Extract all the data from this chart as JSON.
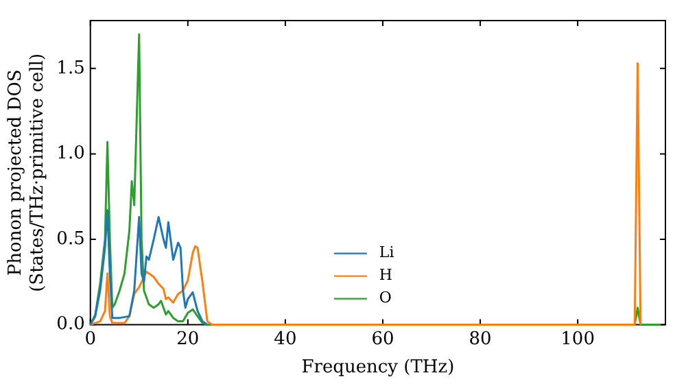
{
  "chart_data": {
    "type": "line",
    "xlabel": "Frequency (THz)",
    "ylabel": "Phonon projected DOS\n(States/THz·primitive cell)",
    "xlim": [
      0,
      118
    ],
    "xticks": [
      0,
      20,
      40,
      60,
      80,
      100
    ],
    "ylim": [
      0,
      1.78
    ],
    "yticks": [
      {
        "value": 0,
        "label": "0.0"
      },
      0.5,
      {
        "value": 1,
        "label": "1.0"
      },
      1.5
    ],
    "grid": false,
    "legend": "lower center",
    "marker": "none",
    "line_style": "solid",
    "series": [
      {
        "name": "Li",
        "color": "#1f77b4",
        "x": [
          0,
          1,
          2,
          3,
          3.5,
          4,
          4.5,
          6,
          8,
          9,
          10,
          10.5,
          11,
          11.5,
          12,
          13,
          14,
          15,
          15.5,
          16,
          17,
          18,
          18.5,
          19,
          19.5,
          20,
          21,
          22,
          23,
          24
        ],
        "values": [
          0,
          0.05,
          0.2,
          0.45,
          0.67,
          0.3,
          0.04,
          0.04,
          0.05,
          0.2,
          0.63,
          0.3,
          0.25,
          0.4,
          0.38,
          0.5,
          0.63,
          0.5,
          0.45,
          0.6,
          0.38,
          0.48,
          0.45,
          0.2,
          0.1,
          0.15,
          0.19,
          0.08,
          0.02,
          0
        ]
      },
      {
        "name": "H",
        "color": "#ff7f0e",
        "x": [
          0,
          2,
          3,
          3.5,
          4,
          4.5,
          7,
          8,
          9,
          10,
          11,
          11.5,
          12,
          13,
          14,
          15,
          15.5,
          16,
          17,
          18,
          19,
          20,
          21,
          21.5,
          22,
          23,
          24,
          25,
          111.7,
          112.3,
          112.9
        ],
        "values": [
          0,
          0.02,
          0.08,
          0.3,
          0.05,
          0.01,
          0.01,
          0.05,
          0.18,
          0.22,
          0.28,
          0.31,
          0.3,
          0.28,
          0.24,
          0.21,
          0.15,
          0.16,
          0.13,
          0.18,
          0.2,
          0.26,
          0.42,
          0.46,
          0.45,
          0.25,
          0.02,
          0,
          0,
          1.53,
          0
        ]
      },
      {
        "name": "O",
        "color": "#2ca02c",
        "x": [
          0,
          1,
          2,
          3,
          3.5,
          4,
          4.5,
          5,
          6,
          7,
          8,
          8.5,
          9,
          9.5,
          10,
          10.5,
          11,
          12,
          13,
          14,
          14.5,
          15,
          15.5,
          16,
          17,
          18,
          19,
          20,
          21,
          22,
          23,
          24,
          111.7,
          112.3,
          112.9,
          117
        ],
        "values": [
          0,
          0.06,
          0.24,
          0.5,
          1.07,
          0.5,
          0.1,
          0.12,
          0.2,
          0.3,
          0.55,
          0.84,
          0.7,
          1.2,
          1.7,
          0.5,
          0.2,
          0.12,
          0.1,
          0.12,
          0.14,
          0.1,
          0.06,
          0.08,
          0.04,
          0.02,
          0.02,
          0.07,
          0.09,
          0.05,
          0.01,
          0,
          0,
          0.1,
          0,
          0
        ]
      }
    ]
  }
}
